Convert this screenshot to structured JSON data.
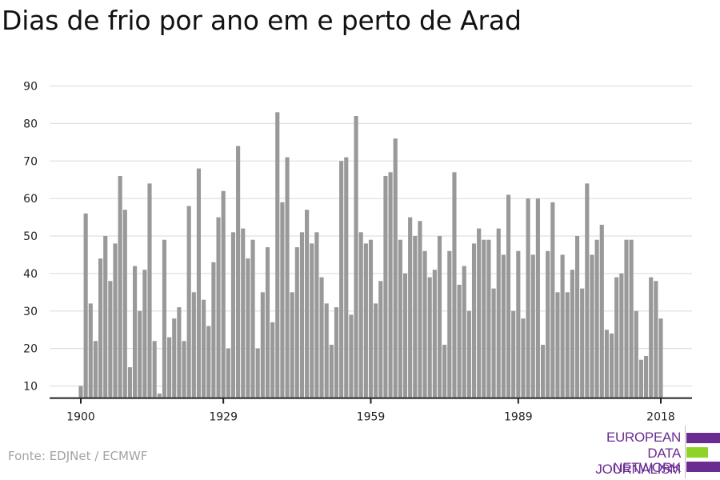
{
  "title": "Dias de frio por ano em e perto de Arad",
  "source": "Fonte: EDJNet / ECMWF",
  "logo": {
    "lines": [
      "EUROPEAN",
      "DATA JOURNALISM",
      "NETWORK"
    ],
    "colors": {
      "purple": "#6b2c91",
      "green": "#8fd32a"
    }
  },
  "colors": {
    "bar": "#999999",
    "grid": "#e0e0e0",
    "axis": "#222222"
  },
  "chart_data": {
    "type": "bar",
    "title": "Dias de frio por ano em e perto de Arad",
    "xlabel": "",
    "ylabel": "",
    "ylim": [
      7,
      90
    ],
    "yticks": [
      10,
      20,
      30,
      40,
      50,
      60,
      70,
      80,
      90
    ],
    "xticks": [
      1900,
      1929,
      1959,
      1989,
      2018
    ],
    "grid": true,
    "x_start": 1900,
    "x_end": 2018,
    "values": [
      10,
      56,
      32,
      22,
      44,
      50,
      38,
      48,
      66,
      57,
      15,
      42,
      30,
      41,
      64,
      22,
      8,
      49,
      23,
      28,
      31,
      22,
      58,
      35,
      68,
      33,
      26,
      43,
      55,
      62,
      20,
      51,
      74,
      52,
      44,
      49,
      20,
      35,
      47,
      27,
      83,
      59,
      71,
      35,
      47,
      51,
      57,
      48,
      51,
      39,
      32,
      21,
      31,
      70,
      71,
      29,
      82,
      51,
      48,
      49,
      32,
      38,
      66,
      67,
      76,
      49,
      40,
      55,
      50,
      54,
      46,
      39,
      41,
      50,
      21,
      46,
      67,
      37,
      42,
      30,
      48,
      52,
      49,
      49,
      36,
      52,
      45,
      61,
      30,
      46,
      28,
      60,
      45,
      60,
      21,
      46,
      59,
      35,
      45,
      35,
      41,
      50,
      36,
      64,
      45,
      49,
      53,
      25,
      24,
      39,
      40,
      49,
      49,
      30,
      17,
      18,
      39,
      38,
      28
    ]
  }
}
